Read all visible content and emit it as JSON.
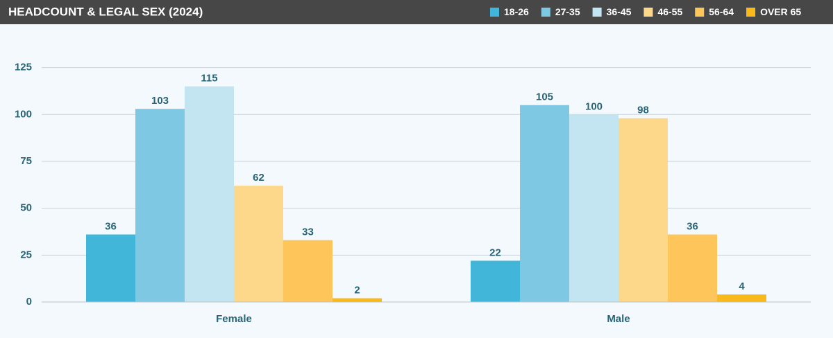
{
  "chart_data": {
    "type": "bar",
    "title": "HEADCOUNT & LEGAL SEX (2024)",
    "categories": [
      "Female",
      "Male"
    ],
    "series": [
      {
        "name": "18-26",
        "color": "#41b6d9",
        "values": [
          36,
          22
        ]
      },
      {
        "name": "27-35",
        "color": "#7ec8e3",
        "values": [
          103,
          105
        ]
      },
      {
        "name": "36-45",
        "color": "#c3e4f1",
        "values": [
          115,
          100
        ]
      },
      {
        "name": "46-55",
        "color": "#fdd78a",
        "values": [
          62,
          98
        ]
      },
      {
        "name": "56-64",
        "color": "#fdc55a",
        "values": [
          33,
          36
        ]
      },
      {
        "name": "OVER 65",
        "color": "#f9b91b",
        "values": [
          2,
          4
        ]
      }
    ],
    "ylim": [
      0,
      140
    ],
    "yticks": [
      0,
      25,
      50,
      75,
      100,
      125
    ],
    "grid": true
  }
}
